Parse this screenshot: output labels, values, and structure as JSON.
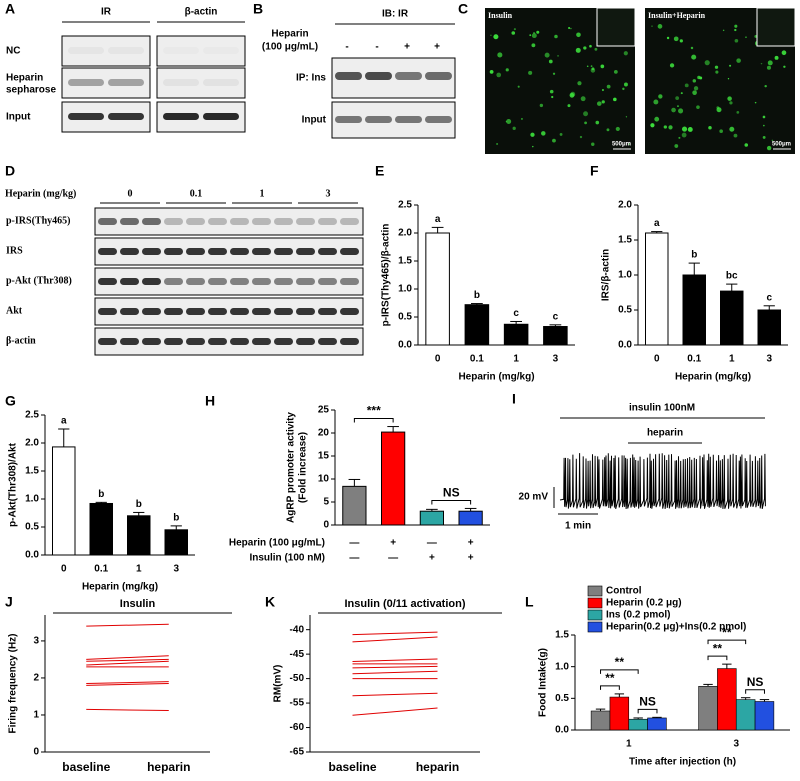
{
  "figure": {
    "A": {
      "letter": "A",
      "columns": [
        "IR",
        "β-actin"
      ],
      "rows": [
        "NC",
        [
          "Heparin",
          "sepharose"
        ],
        "Input"
      ]
    },
    "B": {
      "letter": "B",
      "header": "IB: IR",
      "treatment": [
        "Heparin",
        "(100 μg/mL)"
      ],
      "signs": [
        "-",
        "-",
        "+",
        "+"
      ],
      "rows": [
        "IP: Ins",
        "Input"
      ]
    },
    "C": {
      "letter": "C",
      "images": [
        {
          "label": "Insulin",
          "scale": "500μm"
        },
        {
          "label": "Insulin+Heparin",
          "scale": "500μm"
        }
      ]
    },
    "D": {
      "letter": "D",
      "treatment": "Heparin (mg/kg)",
      "doses": [
        "0",
        "0.1",
        "1",
        "3"
      ],
      "rows": [
        "p-IRS(Thy465)",
        "IRS",
        "p-Akt (Thr308)",
        "Akt",
        "β-actin"
      ]
    },
    "I": {
      "letter": "I",
      "stimulus": "insulin 100nM",
      "drug": "heparin",
      "scale_y": "20 mV",
      "scale_x": "1 min"
    }
  },
  "chart_data": [
    {
      "letter": "E",
      "type": "bar",
      "ylabel": "p-IRS(Thy465)/β-actin",
      "xlabel": "Heparin (mg/kg)",
      "categories": [
        "0",
        "0.1",
        "1",
        "3"
      ],
      "values": [
        2.0,
        0.72,
        0.37,
        0.33
      ],
      "errors": [
        0.1,
        0.02,
        0.05,
        0.03
      ],
      "colors": [
        "#ffffff",
        "#000000",
        "#000000",
        "#000000"
      ],
      "annotations": [
        "a",
        "b",
        "c",
        "c"
      ],
      "ylim": [
        0,
        2.5
      ],
      "yticks": [
        {
          "value": 0,
          "label": "0.0"
        },
        0.5,
        {
          "value": 1,
          "label": "1.0"
        },
        1.5,
        {
          "value": 2,
          "label": "2.0"
        },
        2.5
      ]
    },
    {
      "letter": "F",
      "type": "bar",
      "ylabel": "IRS/β-actin",
      "xlabel": "Heparin (mg/kg)",
      "categories": [
        "0",
        "0.1",
        "1",
        "3"
      ],
      "values": [
        1.6,
        1.0,
        0.77,
        0.5
      ],
      "errors": [
        0.02,
        0.17,
        0.1,
        0.06
      ],
      "colors": [
        "#ffffff",
        "#000000",
        "#000000",
        "#000000"
      ],
      "annotations": [
        "a",
        "b",
        "bc",
        "c"
      ],
      "ylim": [
        0,
        2.0
      ],
      "yticks": [
        {
          "value": 0,
          "label": "0.0"
        },
        0.5,
        {
          "value": 1,
          "label": "1.0"
        },
        1.5,
        {
          "value": 2,
          "label": "2.0"
        }
      ]
    },
    {
      "letter": "G",
      "type": "bar",
      "ylabel": "p-Akt(Thr308)/Akt",
      "xlabel": "Heparin (mg/kg)",
      "categories": [
        "0",
        "0.1",
        "1",
        "3"
      ],
      "values": [
        1.93,
        0.92,
        0.7,
        0.45
      ],
      "errors": [
        0.32,
        0.02,
        0.06,
        0.07
      ],
      "colors": [
        "#ffffff",
        "#000000",
        "#000000",
        "#000000"
      ],
      "annotations": [
        "a",
        "b",
        "b",
        "b"
      ],
      "ylim": [
        0,
        2.5
      ],
      "yticks": [
        {
          "value": 0,
          "label": "0.0"
        },
        0.5,
        {
          "value": 1,
          "label": "1.0"
        },
        1.5,
        {
          "value": 2,
          "label": "2.0"
        },
        2.5
      ]
    },
    {
      "letter": "H",
      "type": "bar",
      "ylabel": [
        "AgRP promoter activity",
        "(Fold increase)"
      ],
      "values": [
        8.4,
        20.2,
        3.0,
        3.0
      ],
      "errors": [
        1.5,
        1.2,
        0.4,
        0.6
      ],
      "colors": [
        "#7f7f7f",
        "#ff0000",
        "#2ca6a4",
        "#2250e0"
      ],
      "conditions": [
        {
          "name": "Heparin (100 μg/mL)",
          "signs": [
            "—",
            "+",
            "—",
            "+"
          ]
        },
        {
          "name": "Insulin (100 nM)",
          "signs": [
            "—",
            "—",
            "+",
            "+"
          ]
        }
      ],
      "significance": [
        "***",
        "NS"
      ],
      "ylim": [
        0,
        25
      ],
      "yticks": [
        0,
        5,
        10,
        15,
        20,
        25
      ]
    },
    {
      "letter": "J",
      "type": "line",
      "title": "Insulin",
      "ylabel": "Firing frequency (Hz)",
      "categories": [
        "baseline",
        "heparin"
      ],
      "color": "#e00000",
      "series": [
        {
          "values": [
            3.4,
            3.45
          ]
        },
        {
          "values": [
            2.5,
            2.6
          ]
        },
        {
          "values": [
            2.45,
            2.5
          ]
        },
        {
          "values": [
            2.35,
            2.45
          ]
        },
        {
          "values": [
            2.3,
            2.3
          ]
        },
        {
          "values": [
            1.85,
            1.9
          ]
        },
        {
          "values": [
            1.8,
            1.85
          ]
        },
        {
          "values": [
            1.15,
            1.12
          ]
        }
      ],
      "ylim": [
        0,
        3.7
      ],
      "yticks": [
        0,
        1,
        2,
        3
      ]
    },
    {
      "letter": "K",
      "type": "line",
      "title": "Insulin (0/11 activation)",
      "ylabel": "RM(mV)",
      "categories": [
        "baseline",
        "heparin"
      ],
      "color": "#e00000",
      "series": [
        {
          "values": [
            -41,
            -40.5
          ]
        },
        {
          "values": [
            -42.5,
            -41.5
          ]
        },
        {
          "values": [
            -46.5,
            -46
          ]
        },
        {
          "values": [
            -47,
            -47
          ]
        },
        {
          "values": [
            -47.8,
            -47.5
          ]
        },
        {
          "values": [
            -49,
            -48.5
          ]
        },
        {
          "values": [
            -50,
            -50
          ]
        },
        {
          "values": [
            -53.5,
            -53
          ]
        },
        {
          "values": [
            -57.5,
            -56
          ]
        }
      ],
      "ylim": [
        -65,
        -37
      ],
      "yticks": [
        -65,
        -60,
        -55,
        -50,
        -45,
        -40
      ]
    },
    {
      "letter": "L",
      "type": "grouped_bar",
      "ylabel": "Food Intake(g)",
      "xlabel": "Time after injection (h)",
      "categories": [
        "1",
        "3"
      ],
      "series": [
        {
          "name": "Control",
          "color": "#7f7f7f",
          "values": [
            0.3,
            0.69
          ],
          "errors": [
            0.03,
            0.03
          ]
        },
        {
          "name": "Heparin (0.2 μg)",
          "color": "#ff0000",
          "values": [
            0.52,
            0.97
          ],
          "errors": [
            0.05,
            0.07
          ]
        },
        {
          "name": "Ins (0.2 pmol)",
          "color": "#2ca6a4",
          "values": [
            0.17,
            0.48
          ],
          "errors": [
            0.02,
            0.03
          ]
        },
        {
          "name": "Heparin(0.2 μg)+Ins(0.2 pmol)",
          "color": "#2250e0",
          "values": [
            0.19,
            0.45
          ],
          "errors": [
            0.01,
            0.03
          ]
        }
      ],
      "significance": [
        [
          "**",
          "**",
          "NS"
        ],
        [
          "**",
          "**",
          "NS"
        ]
      ],
      "ylim": [
        0,
        1.5
      ],
      "yticks": [
        {
          "value": 0,
          "label": "0.0"
        },
        0.5,
        {
          "value": 1,
          "label": "1.0"
        },
        1.5
      ]
    }
  ]
}
